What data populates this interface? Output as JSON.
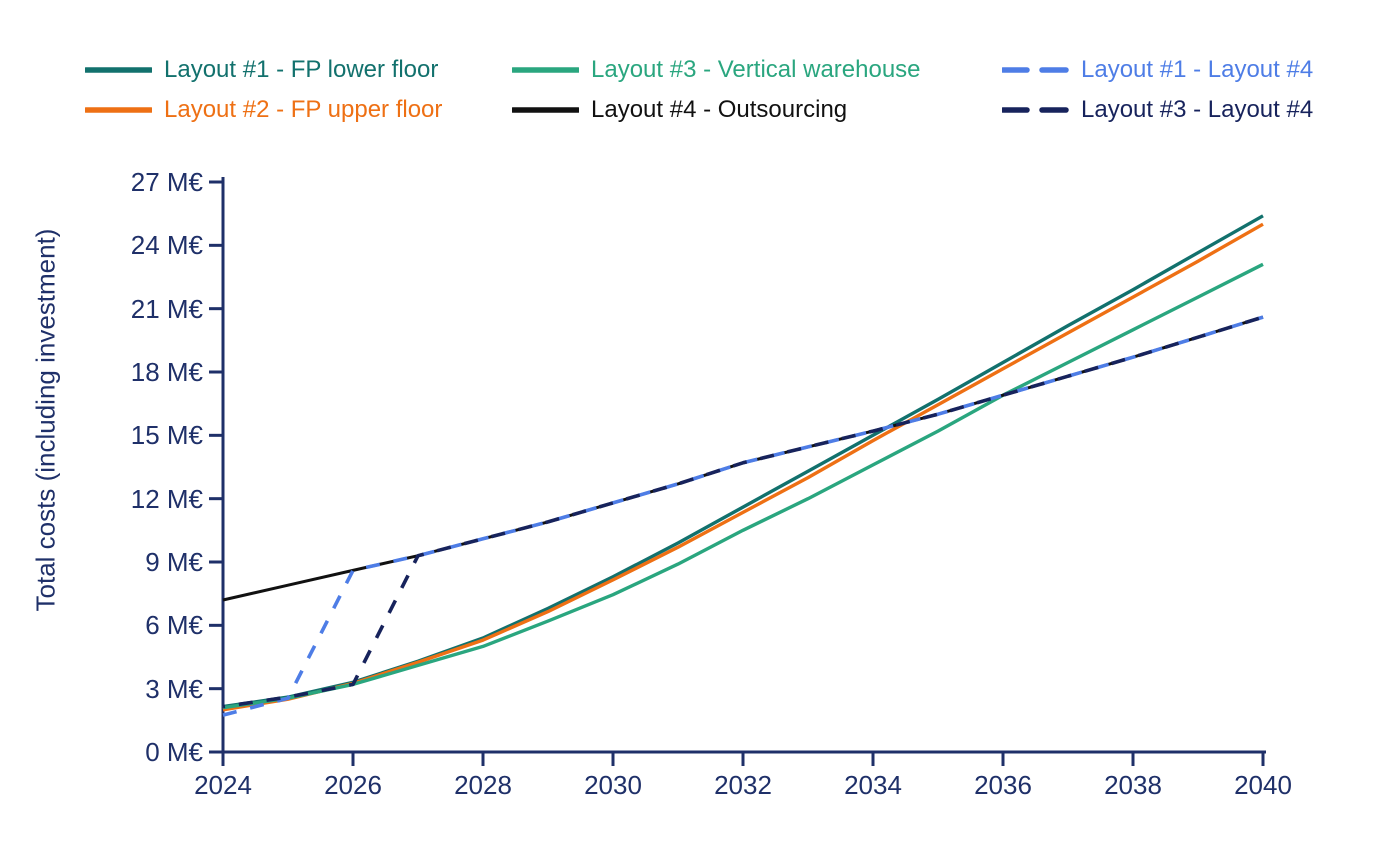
{
  "chart_data": {
    "type": "line",
    "title": "",
    "xlabel": "",
    "ylabel": "Total costs (including investment)",
    "xlim": [
      2024,
      2040
    ],
    "ylim": [
      0,
      27
    ],
    "grid": false,
    "legend_position": "top",
    "axis_color": "#1f3069",
    "x": [
      2024,
      2025,
      2026,
      2027,
      2028,
      2029,
      2030,
      2031,
      2032,
      2033,
      2034,
      2035,
      2036,
      2037,
      2038,
      2039,
      2040
    ],
    "x_ticks": [
      2024,
      2026,
      2028,
      2030,
      2032,
      2034,
      2036,
      2038,
      2040
    ],
    "x_tick_labels": [
      "2024",
      "2026",
      "2028",
      "2030",
      "2032",
      "2034",
      "2036",
      "2038",
      "2040"
    ],
    "y_ticks": [
      0,
      3,
      6,
      9,
      12,
      15,
      18,
      21,
      24,
      27
    ],
    "y_tick_labels": [
      "0 M€",
      "3 M€",
      "6 M€",
      "9 M€",
      "12 M€",
      "15 M€",
      "18 M€",
      "21 M€",
      "24 M€",
      "27 M€"
    ],
    "y_unit": "M€",
    "series": [
      {
        "id": "layout1",
        "name": "Layout #1 - FP lower floor",
        "color": "#12716d",
        "style": "solid",
        "values": [
          2.15,
          2.6,
          3.3,
          4.3,
          5.4,
          6.8,
          8.3,
          9.9,
          11.6,
          13.3,
          15.0,
          16.7,
          18.45,
          20.2,
          21.9,
          23.65,
          25.4
        ]
      },
      {
        "id": "layout2",
        "name": "Layout #2 - FP upper floor",
        "color": "#ee7014",
        "style": "solid",
        "values": [
          2.0,
          2.5,
          3.25,
          4.25,
          5.3,
          6.65,
          8.15,
          9.7,
          11.35,
          13.0,
          14.75,
          16.45,
          18.15,
          19.85,
          21.55,
          23.25,
          25.0
        ]
      },
      {
        "id": "layout3",
        "name": "Layout #3 - Vertical warehouse",
        "color": "#2aa67f",
        "style": "solid",
        "values": [
          2.1,
          2.55,
          3.2,
          4.1,
          5.0,
          6.2,
          7.45,
          8.9,
          10.5,
          12.0,
          13.6,
          15.2,
          16.9,
          18.45,
          20.0,
          21.55,
          23.1
        ]
      },
      {
        "id": "layout4",
        "name": "Layout #4 - Outsourcing",
        "color": "#111111",
        "style": "solid",
        "values": [
          7.2,
          7.9,
          8.6,
          9.3,
          10.1,
          10.9,
          11.8,
          12.7,
          13.7,
          14.45,
          15.2,
          16.0,
          16.9,
          17.8,
          18.7,
          19.65,
          20.6
        ]
      },
      {
        "id": "switch14",
        "name": "Layout #1 - Layout #4",
        "color": "#4e7de6",
        "style": "dashed",
        "values": [
          1.75,
          2.55,
          8.6,
          9.3,
          10.1,
          10.9,
          11.8,
          12.7,
          13.7,
          14.45,
          15.2,
          16.0,
          16.9,
          17.8,
          18.7,
          19.65,
          20.6
        ]
      },
      {
        "id": "switch34",
        "name": "Layout #3 - Layout #4",
        "color": "#17235c",
        "style": "dashed",
        "values": [
          2.15,
          2.6,
          3.2,
          9.3,
          10.1,
          10.9,
          11.8,
          12.7,
          13.7,
          14.45,
          15.2,
          16.0,
          16.9,
          17.8,
          18.7,
          19.65,
          20.6
        ]
      }
    ],
    "legend_display_order": [
      "layout1",
      "layout3",
      "switch14",
      "layout2",
      "layout4",
      "switch34"
    ]
  }
}
